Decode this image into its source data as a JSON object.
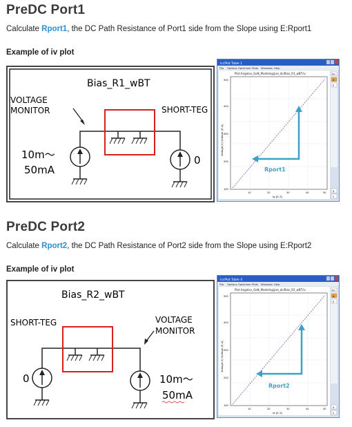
{
  "sections": [
    {
      "title": "PreDC Port1",
      "desc_pre": "Calculate ",
      "desc_kw": "Rport1",
      "desc_post": ", the DC Path Resistance of Port1 side from the Slope using E:Rport1",
      "example_label": "Example of iv plot",
      "circuit": {
        "name": "Bias_R1_wBT",
        "left_label_1": "VOLTAGE",
        "left_label_2": "MONITOR",
        "right_label": "SHORT-TEG",
        "source_left_1": "10m～",
        "source_left_2": "50mA",
        "source_right": "0"
      },
      "plot": {
        "window_title": "IccPlot Table 1",
        "menu": [
          "File",
          "Options",
          "Optimizer",
          "Plots",
          "Windows",
          "Help"
        ],
        "plot_title": "Plot:Angelov_GaN_Modeling/pre_dc/Bias_R1_wBT/iv",
        "ylabel": "Voltage(V) Voltage [E-4]",
        "xlabel": "Ig [E-3]",
        "yticks": [
          "500",
          "400",
          "300",
          "200",
          "100"
        ],
        "xticks": [
          "10",
          "20",
          "30",
          "40",
          "50"
        ],
        "annotation": "Rport1",
        "side_buttons": [
          "PO",
          "A",
          "E"
        ],
        "bottom_buttons": [
          "X",
          "Y"
        ]
      }
    },
    {
      "title": "PreDC Port2",
      "desc_pre": "Calculate ",
      "desc_kw": "Rport2",
      "desc_post": ", the DC Path Resistance of Port2 side from the Slope using E:Rport2",
      "example_label": "Example of iv plot",
      "circuit": {
        "name": "Bias_R2_wBT",
        "left_label_1": "SHORT-TEG",
        "right_label_1": "VOLTAGE",
        "right_label_2": "MONITOR",
        "source_left": "0",
        "source_right_1": "10m～",
        "source_right_2": "50mA"
      },
      "plot": {
        "window_title": "IccPlot Table 4",
        "menu": [
          "File",
          "Options",
          "Optimizer",
          "Plots",
          "Windows",
          "Help"
        ],
        "plot_title": "Plot:Angelov_GaN_Modeling/pre_dc/Bias_R2_wBT/iv",
        "ylabel": "Voltage(V) Voltage [E-4]",
        "xlabel": "id [E-3]",
        "yticks": [
          "500",
          "400",
          "300",
          "200",
          "100"
        ],
        "xticks": [
          "10",
          "20",
          "30",
          "40",
          "50"
        ],
        "annotation": "Rport2",
        "side_buttons": [
          "PO",
          "A",
          "E"
        ],
        "bottom_buttons": [
          "X",
          "Y"
        ]
      }
    }
  ],
  "colors": {
    "accent": "#2f8fd0",
    "red_box": "#d62020",
    "arrow": "#3aa3c4",
    "curve": "#6a3fb0"
  }
}
